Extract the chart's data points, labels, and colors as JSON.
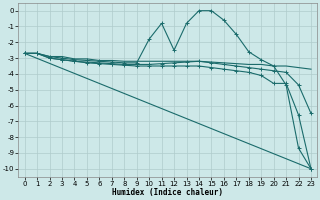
{
  "xlabel": "Humidex (Indice chaleur)",
  "bg_color": "#cde8e8",
  "grid_color": "#b0cccc",
  "line_color": "#1a6b6b",
  "xlim": [
    -0.5,
    23.5
  ],
  "ylim": [
    -10.5,
    0.5
  ],
  "yticks": [
    0,
    -1,
    -2,
    -3,
    -4,
    -5,
    -6,
    -7,
    -8,
    -9,
    -10
  ],
  "xticks": [
    0,
    1,
    2,
    3,
    4,
    5,
    6,
    7,
    8,
    9,
    10,
    11,
    12,
    13,
    14,
    15,
    16,
    17,
    18,
    19,
    20,
    21,
    22,
    23
  ],
  "lines_with_markers": [
    {
      "x": [
        0,
        1,
        2,
        3,
        4,
        5,
        6,
        7,
        8,
        9,
        10,
        11,
        12,
        13,
        14,
        15,
        16,
        17,
        18,
        19,
        20,
        21,
        22,
        23
      ],
      "y": [
        -2.7,
        -2.7,
        -2.9,
        -3.0,
        -3.1,
        -3.15,
        -3.2,
        -3.25,
        -3.3,
        -3.3,
        -1.8,
        -0.8,
        -2.5,
        -0.8,
        0.0,
        0.0,
        -0.6,
        -1.5,
        -2.6,
        -3.1,
        -3.5,
        -4.7,
        -8.7,
        -10.0
      ]
    },
    {
      "x": [
        0,
        1,
        2,
        3,
        4,
        5,
        6,
        7,
        8,
        9,
        10,
        11,
        12,
        13,
        14,
        15,
        16,
        17,
        18,
        19,
        20,
        21,
        22,
        23
      ],
      "y": [
        -2.7,
        -2.7,
        -3.0,
        -3.1,
        -3.2,
        -3.25,
        -3.3,
        -3.35,
        -3.4,
        -3.4,
        -3.4,
        -3.35,
        -3.3,
        -3.25,
        -3.2,
        -3.3,
        -3.4,
        -3.5,
        -3.6,
        -3.7,
        -3.8,
        -3.9,
        -4.7,
        -6.5
      ]
    },
    {
      "x": [
        0,
        1,
        2,
        3,
        4,
        5,
        6,
        7,
        8,
        9,
        10,
        11,
        12,
        13,
        14,
        15,
        16,
        17,
        18,
        19,
        20,
        21,
        22,
        23
      ],
      "y": [
        -2.7,
        -2.7,
        -3.0,
        -3.1,
        -3.2,
        -3.3,
        -3.35,
        -3.4,
        -3.45,
        -3.5,
        -3.5,
        -3.5,
        -3.5,
        -3.5,
        -3.5,
        -3.6,
        -3.7,
        -3.8,
        -3.9,
        -4.1,
        -4.6,
        -4.6,
        -6.6,
        -10.0
      ]
    }
  ],
  "line_no_marker": {
    "x": [
      0,
      23
    ],
    "y": [
      -2.7,
      -10.0
    ]
  },
  "line_flat": {
    "x": [
      0,
      1,
      2,
      3,
      4,
      5,
      6,
      7,
      8,
      9,
      10,
      11,
      12,
      13,
      14,
      15,
      16,
      17,
      18,
      19,
      20,
      21,
      22,
      23
    ],
    "y": [
      -2.7,
      -2.7,
      -2.9,
      -2.9,
      -3.05,
      -3.05,
      -3.15,
      -3.15,
      -3.2,
      -3.2,
      -3.2,
      -3.2,
      -3.2,
      -3.2,
      -3.2,
      -3.25,
      -3.3,
      -3.35,
      -3.4,
      -3.4,
      -3.5,
      -3.5,
      -3.6,
      -3.7
    ]
  }
}
